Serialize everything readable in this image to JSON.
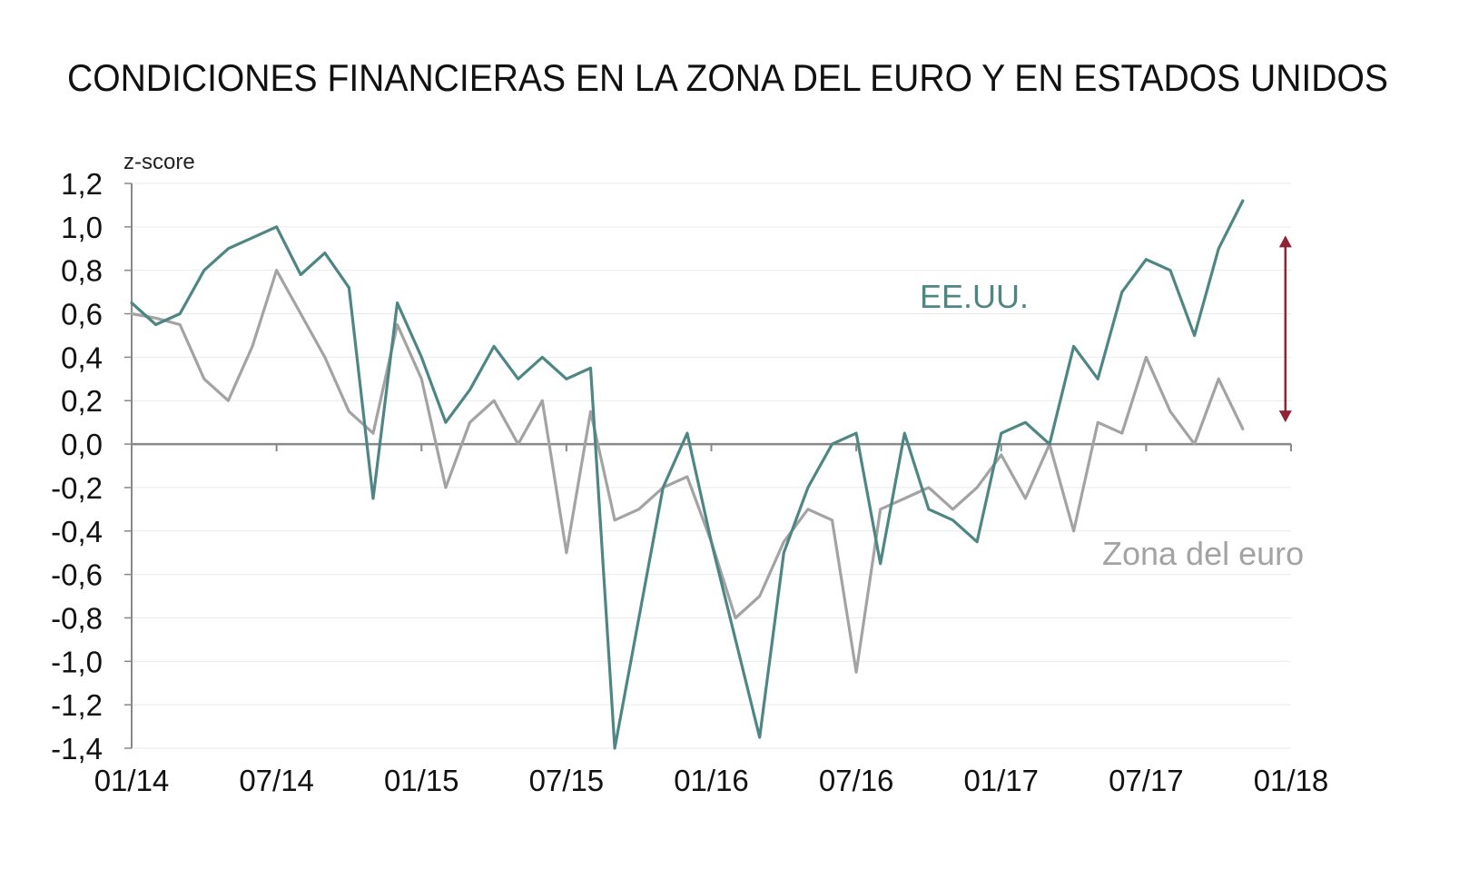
{
  "chart_data": {
    "type": "line",
    "title": "CONDICIONES FINANCIERAS EN LA ZONA DEL EURO Y EN ESTADOS UNIDOS",
    "unit_label": "z-score",
    "xlabel": "",
    "ylabel": "",
    "xlim": [
      "2014-01",
      "2018-01"
    ],
    "ylim": [
      -1.4,
      1.2
    ],
    "y_ticks": [
      "1,2",
      "1,0",
      "0,8",
      "0,6",
      "0,4",
      "0,2",
      "0,0",
      "-0,2",
      "-0,4",
      "-0,6",
      "-0,8",
      "-1,0",
      "-1,2",
      "-1,4"
    ],
    "x_ticks": [
      "01/14",
      "07/14",
      "01/15",
      "07/15",
      "01/16",
      "07/16",
      "01/17",
      "07/17",
      "01/18"
    ],
    "grid": true,
    "series": [
      {
        "name": "EE.UU.",
        "color": "#4e8684",
        "x": [
          "2014-01",
          "2014-02",
          "2014-03",
          "2014-04",
          "2014-05",
          "2014-06",
          "2014-07",
          "2014-08",
          "2014-09",
          "2014-10",
          "2014-11",
          "2014-12",
          "2015-01",
          "2015-02",
          "2015-03",
          "2015-04",
          "2015-05",
          "2015-06",
          "2015-07",
          "2015-08",
          "2015-09",
          "2015-10",
          "2015-11",
          "2015-12",
          "2016-01",
          "2016-02",
          "2016-03",
          "2016-04",
          "2016-05",
          "2016-06",
          "2016-07",
          "2016-08",
          "2016-09",
          "2016-10",
          "2016-11",
          "2016-12",
          "2017-01",
          "2017-02",
          "2017-03",
          "2017-04",
          "2017-05",
          "2017-06",
          "2017-07",
          "2017-08",
          "2017-09",
          "2017-10",
          "2017-11"
        ],
        "values": [
          0.65,
          0.55,
          0.6,
          0.8,
          0.9,
          0.95,
          1.0,
          0.78,
          0.88,
          0.72,
          -0.25,
          0.65,
          0.4,
          0.1,
          0.25,
          0.45,
          0.3,
          0.4,
          0.3,
          0.35,
          -1.4,
          -0.8,
          -0.2,
          0.05,
          -0.45,
          -0.9,
          -1.35,
          -0.5,
          -0.2,
          0.0,
          0.05,
          -0.55,
          0.05,
          -0.3,
          -0.35,
          -0.45,
          0.05,
          0.1,
          0.0,
          0.45,
          0.3,
          0.7,
          0.85,
          0.8,
          0.5,
          0.9,
          1.12
        ]
      },
      {
        "name": "Zona del euro",
        "color": "#a3a3a3",
        "x": [
          "2014-01",
          "2014-02",
          "2014-03",
          "2014-04",
          "2014-05",
          "2014-06",
          "2014-07",
          "2014-08",
          "2014-09",
          "2014-10",
          "2014-11",
          "2014-12",
          "2015-01",
          "2015-02",
          "2015-03",
          "2015-04",
          "2015-05",
          "2015-06",
          "2015-07",
          "2015-08",
          "2015-09",
          "2015-10",
          "2015-11",
          "2015-12",
          "2016-01",
          "2016-02",
          "2016-03",
          "2016-04",
          "2016-05",
          "2016-06",
          "2016-07",
          "2016-08",
          "2016-09",
          "2016-10",
          "2016-11",
          "2016-12",
          "2017-01",
          "2017-02",
          "2017-03",
          "2017-04",
          "2017-05",
          "2017-06",
          "2017-07",
          "2017-08",
          "2017-09",
          "2017-10",
          "2017-11"
        ],
        "values": [
          0.6,
          0.58,
          0.55,
          0.3,
          0.2,
          0.45,
          0.8,
          0.6,
          0.4,
          0.15,
          0.05,
          0.55,
          0.3,
          -0.2,
          0.1,
          0.2,
          0.0,
          0.2,
          -0.5,
          0.15,
          -0.35,
          -0.3,
          -0.2,
          -0.15,
          -0.45,
          -0.8,
          -0.7,
          -0.45,
          -0.3,
          -0.35,
          -1.05,
          -0.3,
          -0.25,
          -0.2,
          -0.3,
          -0.2,
          -0.05,
          -0.25,
          0.0,
          -0.4,
          0.1,
          0.05,
          0.4,
          0.15,
          0.0,
          0.3,
          0.07
        ]
      }
    ],
    "annotations": [
      {
        "type": "double-arrow",
        "color": "#8e2336",
        "x": "2017-11",
        "y_from": 0.1,
        "y_to": 0.96
      }
    ]
  }
}
